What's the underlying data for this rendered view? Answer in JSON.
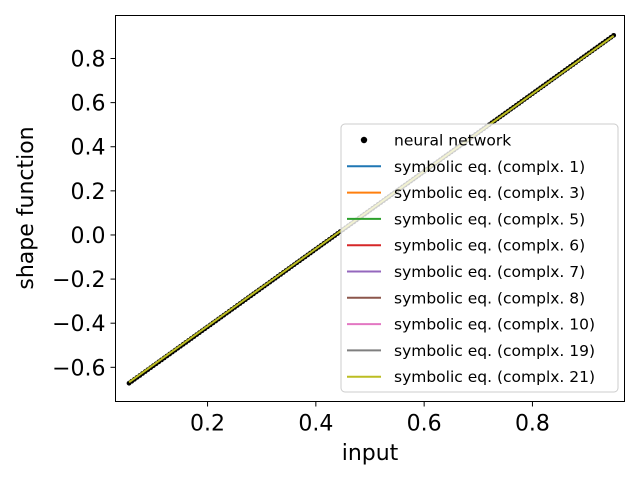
{
  "chart_data": {
    "type": "line",
    "xlabel": "input",
    "ylabel": "shape function",
    "xlim": [
      0.03,
      0.97
    ],
    "ylim": [
      -0.755,
      0.995
    ],
    "xticks": [
      0.2,
      0.4,
      0.6,
      0.8
    ],
    "yticks": [
      -0.6,
      -0.4,
      -0.2,
      0.0,
      0.2,
      0.4,
      0.6,
      0.8
    ],
    "xtick_labels": [
      "0.2",
      "0.4",
      "0.6",
      "0.8"
    ],
    "ytick_labels": [
      "−0.6",
      "−0.4",
      "−0.2",
      "0.0",
      "0.2",
      "0.4",
      "0.6",
      "0.8"
    ],
    "grid": false,
    "legend_position": "center-right",
    "scatter": {
      "name": "neural network",
      "color": "#000000",
      "x_start": 0.055,
      "x_end": 0.95,
      "y_start": -0.672,
      "y_end": 0.905,
      "count": 180
    },
    "series": [
      {
        "name": "symbolic eq. (complx. 1)",
        "color": "#1f77b4",
        "x": [
          0.055,
          0.95
        ],
        "y": [
          -0.668,
          0.903
        ]
      },
      {
        "name": "symbolic eq. (complx. 3)",
        "color": "#ff7f0e",
        "x": [
          0.055,
          0.95
        ],
        "y": [
          -0.668,
          0.903
        ]
      },
      {
        "name": "symbolic eq. (complx. 5)",
        "color": "#2ca02c",
        "x": [
          0.055,
          0.95
        ],
        "y": [
          -0.668,
          0.903
        ]
      },
      {
        "name": "symbolic eq. (complx. 6)",
        "color": "#d62728",
        "x": [
          0.055,
          0.95
        ],
        "y": [
          -0.668,
          0.903
        ]
      },
      {
        "name": "symbolic eq. (complx. 7)",
        "color": "#9467bd",
        "x": [
          0.055,
          0.95
        ],
        "y": [
          -0.668,
          0.903
        ]
      },
      {
        "name": "symbolic eq. (complx. 8)",
        "color": "#8c564b",
        "x": [
          0.055,
          0.95
        ],
        "y": [
          -0.668,
          0.903
        ]
      },
      {
        "name": "symbolic eq. (complx. 10)",
        "color": "#e377c2",
        "x": [
          0.055,
          0.95
        ],
        "y": [
          -0.668,
          0.903
        ]
      },
      {
        "name": "symbolic eq. (complx. 19)",
        "color": "#7f7f7f",
        "x": [
          0.055,
          0.95
        ],
        "y": [
          -0.668,
          0.903
        ]
      },
      {
        "name": "symbolic eq. (complx. 21)",
        "color": "#bcbd22",
        "x": [
          0.055,
          0.95
        ],
        "y": [
          -0.668,
          0.903
        ]
      }
    ]
  }
}
